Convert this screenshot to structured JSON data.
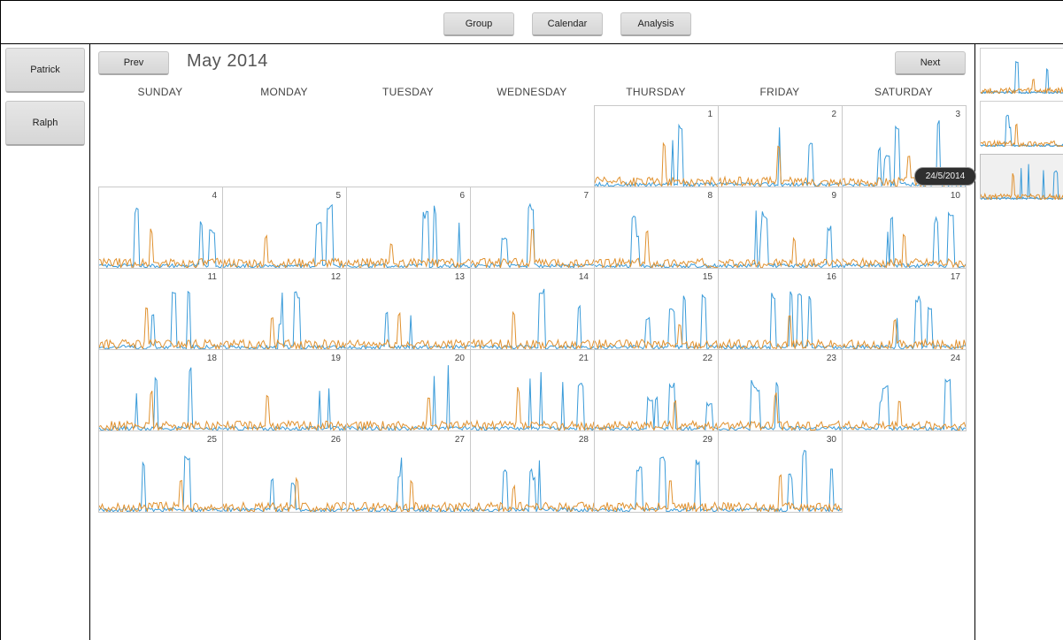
{
  "top_nav": {
    "group_label": "Group",
    "calendar_label": "Calendar",
    "analysis_label": "Analysis"
  },
  "users": [
    {
      "name": "Patrick"
    },
    {
      "name": "Ralph"
    }
  ],
  "calendar": {
    "prev_label": "Prev",
    "next_label": "Next",
    "month_title": "May 2014",
    "weekdays": [
      "SUNDAY",
      "MONDAY",
      "TUESDAY",
      "WEDNESDAY",
      "THURSDAY",
      "FRIDAY",
      "SATURDAY"
    ],
    "first_weekday_index": 4,
    "days_in_month": 30,
    "days": [
      "1",
      "2",
      "3",
      "4",
      "5",
      "6",
      "7",
      "8",
      "9",
      "10",
      "11",
      "12",
      "13",
      "14",
      "15",
      "16",
      "17",
      "18",
      "19",
      "20",
      "21",
      "22",
      "23",
      "24",
      "25",
      "26",
      "27",
      "28",
      "29",
      "30"
    ]
  },
  "tooltip": {
    "text": "24/5/2014"
  },
  "colors": {
    "series_blue": "#3a9bd9",
    "series_orange": "#e0912f",
    "selected_thumb": "#f0f0f0"
  },
  "thumbnails": [
    {
      "selected": false
    },
    {
      "selected": false
    },
    {
      "selected": true
    }
  ]
}
